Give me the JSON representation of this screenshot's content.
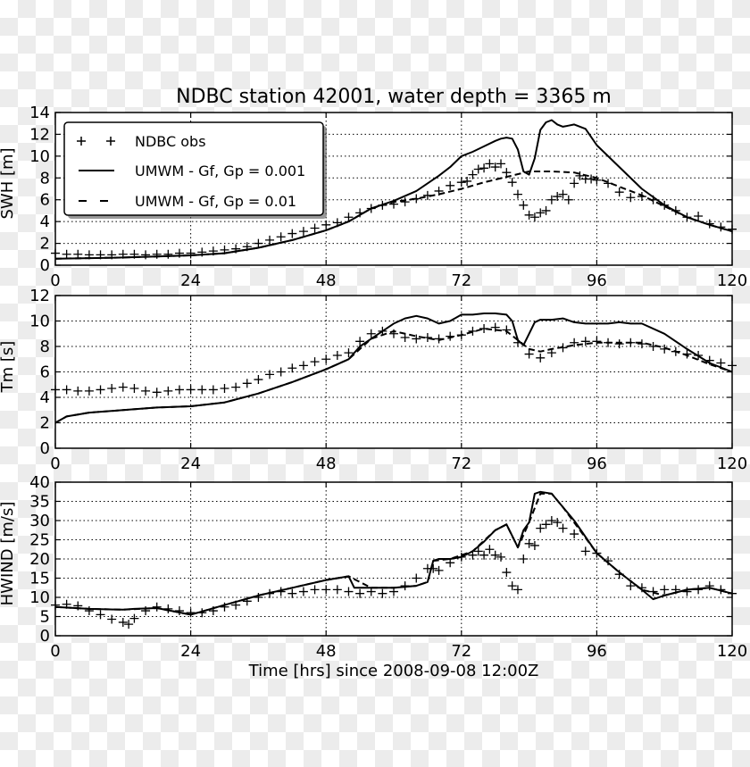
{
  "chart_data": {
    "type": "line",
    "title": "NDBC station 42001, water depth = 3365 m",
    "xlabel": "Time [hrs] since 2008-09-08 12:00Z",
    "xlim": [
      0,
      120
    ],
    "xticks": [
      0,
      24,
      48,
      72,
      96,
      120
    ],
    "grid": true,
    "legend": {
      "placement": "top-left of first panel",
      "entries": [
        "NDBC obs",
        "UMWM - Gf, Gp = 0.001",
        "UMWM - Gf, Gp = 0.01"
      ]
    },
    "panels": [
      {
        "ylabel": "SWH [m]",
        "ylim": [
          0,
          14
        ],
        "yticks": [
          0,
          2,
          4,
          6,
          8,
          10,
          12,
          14
        ],
        "series": [
          {
            "name": "NDBC obs",
            "style": "plus-markers",
            "x": [
              0,
              2,
              4,
              6,
              8,
              10,
              12,
              14,
              16,
              18,
              20,
              22,
              24,
              26,
              28,
              30,
              32,
              34,
              36,
              38,
              40,
              42,
              44,
              46,
              48,
              50,
              52,
              54,
              56,
              58,
              60,
              62,
              64,
              66,
              68,
              70,
              72,
              73,
              74,
              75,
              76,
              77,
              78,
              79,
              80,
              81,
              82,
              83,
              84,
              85,
              86,
              87,
              88,
              89,
              90,
              91,
              92,
              93,
              94,
              95,
              96,
              98,
              100,
              102,
              104,
              106,
              108,
              110,
              112,
              114,
              116,
              118,
              120
            ],
            "values": [
              1.1,
              1.0,
              1.0,
              0.95,
              0.95,
              0.95,
              1.0,
              1.0,
              0.95,
              1.0,
              1.0,
              1.1,
              1.1,
              1.2,
              1.3,
              1.4,
              1.5,
              1.7,
              2.0,
              2.3,
              2.6,
              2.9,
              3.1,
              3.4,
              3.7,
              3.9,
              4.4,
              4.8,
              5.2,
              5.5,
              5.6,
              5.8,
              6.1,
              6.4,
              6.8,
              7.3,
              7.6,
              7.7,
              8.3,
              8.8,
              8.9,
              9.3,
              9.0,
              9.3,
              8.5,
              7.6,
              6.5,
              5.5,
              4.6,
              4.4,
              4.8,
              5.0,
              6.0,
              6.3,
              6.5,
              6.0,
              7.5,
              8.2,
              7.9,
              7.9,
              7.8,
              7.5,
              6.7,
              6.2,
              6.3,
              6.0,
              5.5,
              5.0,
              4.4,
              4.5,
              3.8,
              3.5,
              3.3
            ]
          },
          {
            "name": "UMWM - Gf, Gp = 0.001",
            "style": "solid",
            "x": [
              0,
              6,
              12,
              18,
              24,
              30,
              36,
              42,
              48,
              52,
              54,
              56,
              60,
              64,
              68,
              70,
              72,
              74,
              76,
              78,
              79,
              80,
              81,
              82,
              83,
              84,
              85,
              86,
              87,
              88,
              89,
              90,
              91,
              92,
              94,
              96,
              100,
              104,
              108,
              112,
              116,
              120
            ],
            "values": [
              0.6,
              0.65,
              0.7,
              0.8,
              0.9,
              1.1,
              1.6,
              2.3,
              3.2,
              4.0,
              4.6,
              5.2,
              5.9,
              6.8,
              8.2,
              9.0,
              10.0,
              10.4,
              10.9,
              11.4,
              11.6,
              11.7,
              11.6,
              10.6,
              8.6,
              8.3,
              9.8,
              12.4,
              13.1,
              13.3,
              12.9,
              12.7,
              12.8,
              12.9,
              12.5,
              11.0,
              9.0,
              7.0,
              5.5,
              4.4,
              3.7,
              3.1
            ]
          },
          {
            "name": "UMWM - Gf, Gp = 0.01",
            "style": "dashed",
            "x": [
              0,
              6,
              12,
              18,
              24,
              30,
              36,
              42,
              48,
              52,
              56,
              60,
              64,
              68,
              72,
              76,
              80,
              84,
              88,
              92,
              96,
              100,
              104,
              108,
              112,
              116,
              120
            ],
            "values": [
              0.6,
              0.65,
              0.7,
              0.8,
              0.9,
              1.1,
              1.6,
              2.3,
              3.2,
              4.0,
              5.2,
              5.8,
              6.1,
              6.5,
              7.0,
              7.6,
              8.1,
              8.6,
              8.6,
              8.5,
              8.0,
              7.2,
              6.4,
              5.4,
              4.4,
              3.7,
              3.1
            ]
          }
        ]
      },
      {
        "ylabel": "Tm [s]",
        "ylim": [
          0,
          12
        ],
        "yticks": [
          0,
          2,
          4,
          6,
          8,
          10,
          12
        ],
        "series": [
          {
            "name": "NDBC obs",
            "style": "plus-markers",
            "x": [
              0,
              2,
              4,
              6,
              8,
              10,
              12,
              14,
              16,
              18,
              20,
              22,
              24,
              26,
              28,
              30,
              32,
              34,
              36,
              38,
              40,
              42,
              44,
              46,
              48,
              50,
              52,
              54,
              56,
              58,
              60,
              62,
              64,
              66,
              68,
              70,
              72,
              74,
              76,
              78,
              80,
              82,
              84,
              86,
              88,
              90,
              92,
              94,
              96,
              98,
              100,
              102,
              104,
              106,
              108,
              110,
              112,
              114,
              116,
              118,
              120
            ],
            "values": [
              4.6,
              4.6,
              4.5,
              4.5,
              4.6,
              4.7,
              4.8,
              4.7,
              4.5,
              4.4,
              4.5,
              4.6,
              4.6,
              4.6,
              4.6,
              4.7,
              4.8,
              5.1,
              5.4,
              5.8,
              6.0,
              6.3,
              6.5,
              6.8,
              7.0,
              7.3,
              7.5,
              8.4,
              9.0,
              9.2,
              9.0,
              8.7,
              8.6,
              8.7,
              8.6,
              8.8,
              8.9,
              9.2,
              9.4,
              9.5,
              9.3,
              8.3,
              7.4,
              7.1,
              7.5,
              7.9,
              8.3,
              8.4,
              8.4,
              8.3,
              8.2,
              8.3,
              8.2,
              8.0,
              7.8,
              7.6,
              7.4,
              7.3,
              6.9,
              6.7,
              6.5
            ]
          },
          {
            "name": "UMWM - Gf, Gp = 0.001",
            "style": "solid",
            "x": [
              0,
              2,
              6,
              12,
              18,
              24,
              30,
              36,
              42,
              48,
              52,
              54,
              56,
              60,
              62,
              64,
              66,
              68,
              70,
              72,
              74,
              76,
              78,
              80,
              81,
              82,
              83,
              84,
              85,
              86,
              88,
              90,
              92,
              94,
              96,
              98,
              100,
              102,
              104,
              108,
              112,
              116,
              120
            ],
            "values": [
              2.0,
              2.5,
              2.8,
              3.0,
              3.2,
              3.3,
              3.6,
              4.3,
              5.2,
              6.2,
              7.0,
              8.0,
              8.6,
              9.8,
              10.2,
              10.4,
              10.2,
              9.8,
              10.0,
              10.5,
              10.5,
              10.6,
              10.6,
              10.5,
              10.0,
              8.5,
              8.1,
              9.0,
              9.9,
              10.1,
              10.1,
              10.2,
              9.9,
              9.8,
              9.8,
              9.8,
              9.9,
              9.8,
              9.8,
              9.0,
              7.8,
              6.7,
              6.0
            ]
          },
          {
            "name": "UMWM - Gf, Gp = 0.01",
            "style": "dashed",
            "x": [
              0,
              2,
              6,
              12,
              18,
              24,
              30,
              36,
              42,
              48,
              52,
              56,
              60,
              64,
              68,
              72,
              76,
              80,
              84,
              86,
              88,
              92,
              96,
              100,
              104,
              108,
              112,
              116,
              120
            ],
            "values": [
              2.0,
              2.5,
              2.8,
              3.0,
              3.2,
              3.3,
              3.6,
              4.3,
              5.2,
              6.2,
              7.0,
              8.6,
              9.2,
              8.8,
              8.5,
              8.9,
              9.4,
              9.2,
              7.8,
              7.6,
              7.8,
              8.1,
              8.3,
              8.3,
              8.3,
              7.9,
              7.3,
              6.6,
              6.0
            ]
          }
        ]
      },
      {
        "ylabel": "HWIND [m/s]",
        "ylim": [
          0,
          40
        ],
        "yticks": [
          0,
          5,
          10,
          15,
          20,
          25,
          30,
          35,
          40
        ],
        "series": [
          {
            "name": "NDBC obs",
            "style": "plus-markers",
            "x": [
              0,
              2,
              4,
              6,
              8,
              10,
              12,
              13,
              14,
              16,
              18,
              20,
              22,
              24,
              26,
              28,
              30,
              32,
              34,
              36,
              38,
              40,
              42,
              44,
              46,
              48,
              50,
              52,
              54,
              56,
              58,
              60,
              62,
              64,
              66,
              67,
              68,
              70,
              72,
              74,
              75,
              76,
              77,
              78,
              79,
              80,
              81,
              82,
              83,
              84,
              85,
              86,
              87,
              88,
              89,
              90,
              92,
              94,
              96,
              98,
              100,
              102,
              104,
              106,
              108,
              110,
              112,
              114,
              116,
              118,
              120
            ],
            "values": [
              8.0,
              8.2,
              7.8,
              6.5,
              5.5,
              4.3,
              3.5,
              3.0,
              4.5,
              6.5,
              7.5,
              7.0,
              6.5,
              6.0,
              6.0,
              6.5,
              7.5,
              8.0,
              9.0,
              10.0,
              11.0,
              11.5,
              11.0,
              11.5,
              12.0,
              12.0,
              12.0,
              11.5,
              11.0,
              11.5,
              11.0,
              11.5,
              13.0,
              15.0,
              17.5,
              17.5,
              17.0,
              19.0,
              20.5,
              21.0,
              22.0,
              21.0,
              22.5,
              21.0,
              20.5,
              16.5,
              13.0,
              12.0,
              20.0,
              24.0,
              23.5,
              28.0,
              29.0,
              30.0,
              29.5,
              28.0,
              26.5,
              22.0,
              21.5,
              19.5,
              16.0,
              13.0,
              12.5,
              11.5,
              12.0,
              12.0,
              11.5,
              12.0,
              13.0,
              12.0,
              11.0
            ]
          },
          {
            "name": "UMWM - Gf, Gp = 0.001",
            "style": "solid",
            "x": [
              0,
              6,
              12,
              14,
              18,
              24,
              30,
              36,
              42,
              48,
              52,
              53,
              56,
              60,
              64,
              66,
              67,
              68,
              70,
              72,
              74,
              76,
              78,
              80,
              81,
              82,
              83,
              84,
              85,
              86,
              88,
              90,
              92,
              96,
              100,
              104,
              106,
              108,
              112,
              116,
              120
            ],
            "values": [
              7.5,
              7.0,
              6.8,
              7.0,
              7.2,
              5.5,
              8.0,
              10.5,
              12.5,
              14.5,
              15.5,
              12.5,
              12.5,
              12.5,
              13.0,
              14.0,
              19.5,
              20.0,
              20.0,
              20.5,
              22.0,
              24.5,
              27.5,
              29.0,
              26.0,
              23.0,
              27.5,
              29.5,
              37.0,
              37.5,
              37.0,
              33.5,
              30.0,
              21.5,
              16.5,
              12.0,
              9.5,
              10.5,
              12.0,
              12.5,
              11.0
            ]
          },
          {
            "name": "UMWM - Gf, Gp = 0.01",
            "style": "dashed",
            "x": [
              0,
              6,
              12,
              18,
              24,
              30,
              36,
              42,
              48,
              52,
              56,
              60,
              64,
              66,
              67,
              70,
              74,
              78,
              80,
              82,
              84,
              86,
              88,
              90,
              96,
              100,
              104,
              108,
              112,
              116,
              120
            ],
            "values": [
              7.5,
              7.0,
              6.8,
              7.2,
              5.5,
              8.0,
              10.5,
              12.5,
              14.5,
              15.5,
              12.5,
              12.5,
              13.0,
              14.0,
              19.5,
              20.0,
              22.0,
              27.5,
              29.0,
              23.0,
              29.5,
              37.0,
              37.0,
              33.5,
              21.5,
              16.5,
              12.0,
              10.5,
              12.0,
              12.5,
              11.0
            ]
          }
        ]
      }
    ]
  }
}
